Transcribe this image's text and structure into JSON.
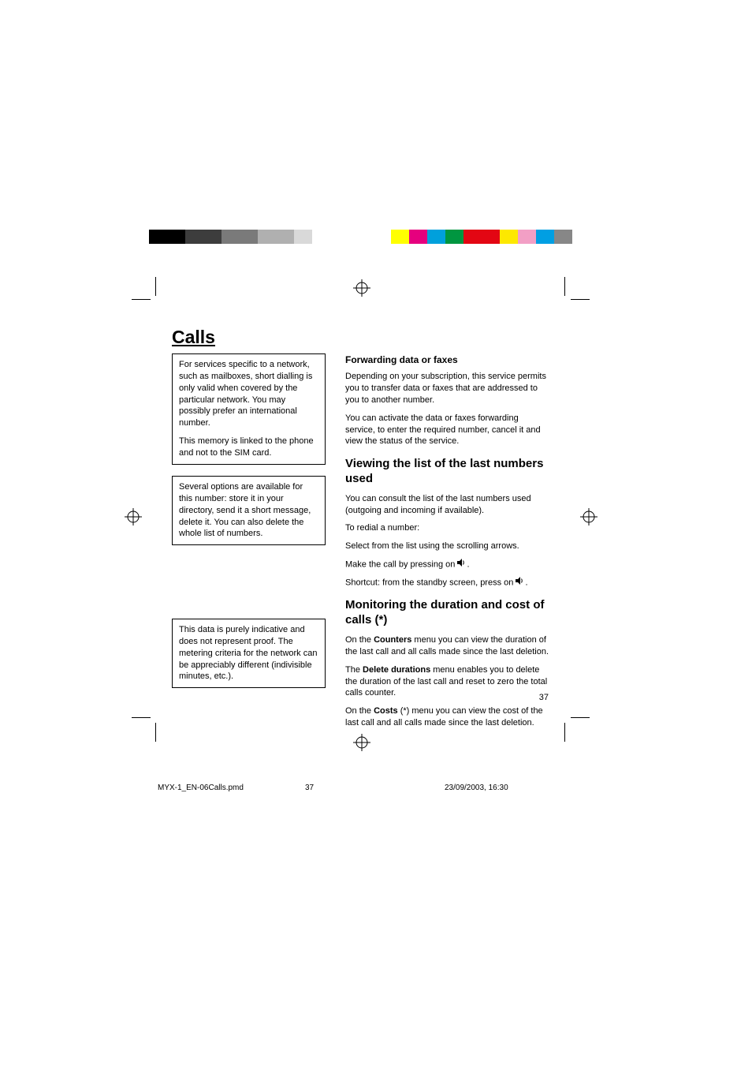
{
  "colorBarLeft": [
    "#000000",
    "#000000",
    "#3d3d3d",
    "#3d3d3d",
    "#7a7a7a",
    "#7a7a7a",
    "#b0b0b0",
    "#b0b0b0",
    "#d9d9d9",
    "#ffffff"
  ],
  "colorBarRight": [
    "#ffff00",
    "#e6007e",
    "#00a0dc",
    "#009640",
    "#e30613",
    "#e30613",
    "#fde800",
    "#f29fc5",
    "#009fe3",
    "#878787"
  ],
  "title": "Calls",
  "leftBox1": {
    "p1": "For services specific to a network, such as mailboxes, short dialling is only valid when covered by the particular network. You may possibly prefer an international number.",
    "p2": "This memory is linked to the phone and not to the SIM card."
  },
  "leftBox2": {
    "p1": "Several options are available for this number: store it in your directory, send it a short message, delete it. You can also delete the whole list of numbers."
  },
  "leftBox3": {
    "p1": "This data is purely indicative and does not represent proof.  The metering criteria for the network can be appreciably different (indivisible minutes, etc.)."
  },
  "right": {
    "h3_1": "Forwarding data or faxes",
    "p1": "Depending on your subscription, this service permits you to transfer data or faxes that are addressed to you to another number.",
    "p2": "You can activate the data or faxes forwarding service, to enter the required number, cancel it and view the status of the service.",
    "h2_1": "Viewing the list of the last numbers used",
    "p3": "You can consult the list of the last numbers used (outgoing and incoming if available).",
    "p4": "To redial a number:",
    "p5": "Select from the list using the scrolling arrows.",
    "p6_pre": "Make the call by pressing on ",
    "p6_post": ".",
    "p7_pre": "Shortcut: from the standby screen, press on ",
    "p7_post": ".",
    "h2_2": "Monitoring the duration and cost of calls (*)",
    "p8_pre": "On the ",
    "p8_bold": "Counters",
    "p8_post": " menu you can view the duration of the last call and all calls made since the last deletion.",
    "p9_pre": "The ",
    "p9_bold": "Delete durations",
    "p9_post": " menu enables you to delete the duration of the last call and reset to zero the total calls counter.",
    "p10_pre": "On the ",
    "p10_bold": "Costs",
    "p10_post": " (*) menu you can view the cost of the last call and all calls made since the last deletion."
  },
  "pageNumber": "37",
  "footer": {
    "file": "MYX-1_EN-06Calls.pmd",
    "page": "37",
    "date": "23/09/2003, 16:30"
  }
}
